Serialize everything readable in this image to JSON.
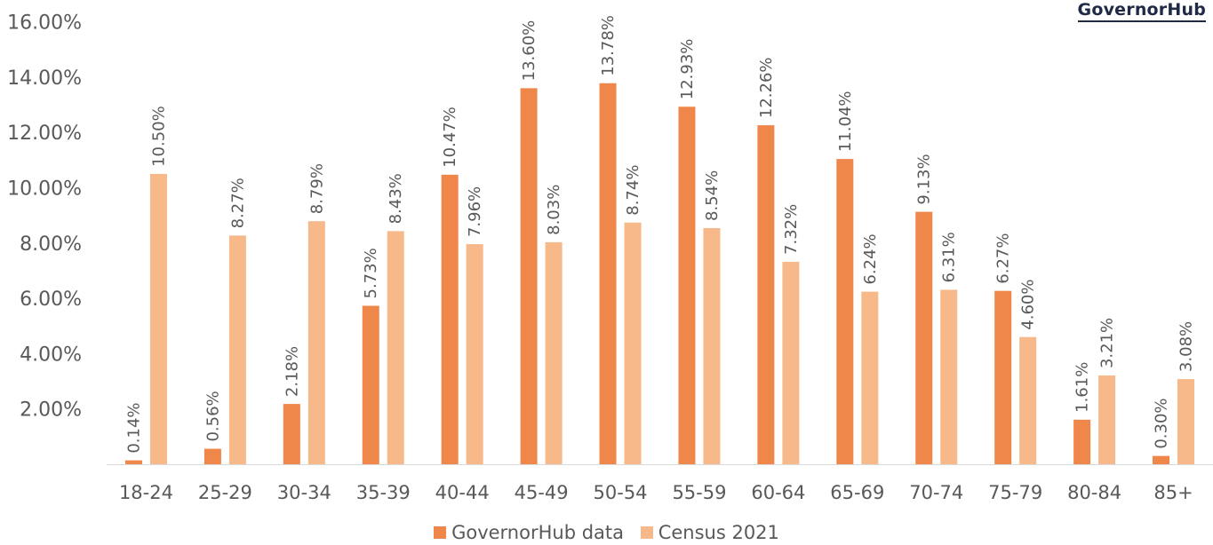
{
  "brand": "GovernorHub",
  "colors": {
    "series1": "#f0874a",
    "series2": "#f7b88a",
    "axis": "#d9d9d9",
    "text": "#595959"
  },
  "chart_data": {
    "type": "bar",
    "categories": [
      "18-24",
      "25-29",
      "30-34",
      "35-39",
      "40-44",
      "45-49",
      "50-54",
      "55-59",
      "60-64",
      "65-69",
      "70-74",
      "75-79",
      "80-84",
      "85+"
    ],
    "series": [
      {
        "name": "GovernorHub data",
        "values": [
          0.14,
          0.56,
          2.18,
          5.73,
          10.47,
          13.6,
          13.78,
          12.93,
          12.26,
          11.04,
          9.13,
          6.27,
          1.61,
          0.3
        ],
        "labels": [
          "0.14%",
          "0.56%",
          "2.18%",
          "5.73%",
          "10.47%",
          "13.60%",
          "13.78%",
          "12.93%",
          "12.26%",
          "11.04%",
          "9.13%",
          "6.27%",
          "1.61%",
          "0.30%"
        ]
      },
      {
        "name": "Census 2021",
        "values": [
          10.5,
          8.27,
          8.79,
          8.43,
          7.96,
          8.03,
          8.74,
          8.54,
          7.32,
          6.24,
          6.31,
          4.6,
          3.21,
          3.08
        ],
        "labels": [
          "10.50%",
          "8.27%",
          "8.79%",
          "8.43%",
          "7.96%",
          "8.03%",
          "8.74%",
          "8.54%",
          "7.32%",
          "6.24%",
          "6.31%",
          "4.60%",
          "3.21%",
          "3.08%"
        ]
      }
    ],
    "yticks": [
      "2.00%",
      "4.00%",
      "6.00%",
      "8.00%",
      "10.00%",
      "12.00%",
      "14.00%",
      "16.00%"
    ],
    "ytick_values": [
      2,
      4,
      6,
      8,
      10,
      12,
      14,
      16
    ],
    "ylim": [
      0,
      16
    ],
    "grid": false,
    "legend": "bottom",
    "title": "",
    "xlabel": "",
    "ylabel": ""
  }
}
